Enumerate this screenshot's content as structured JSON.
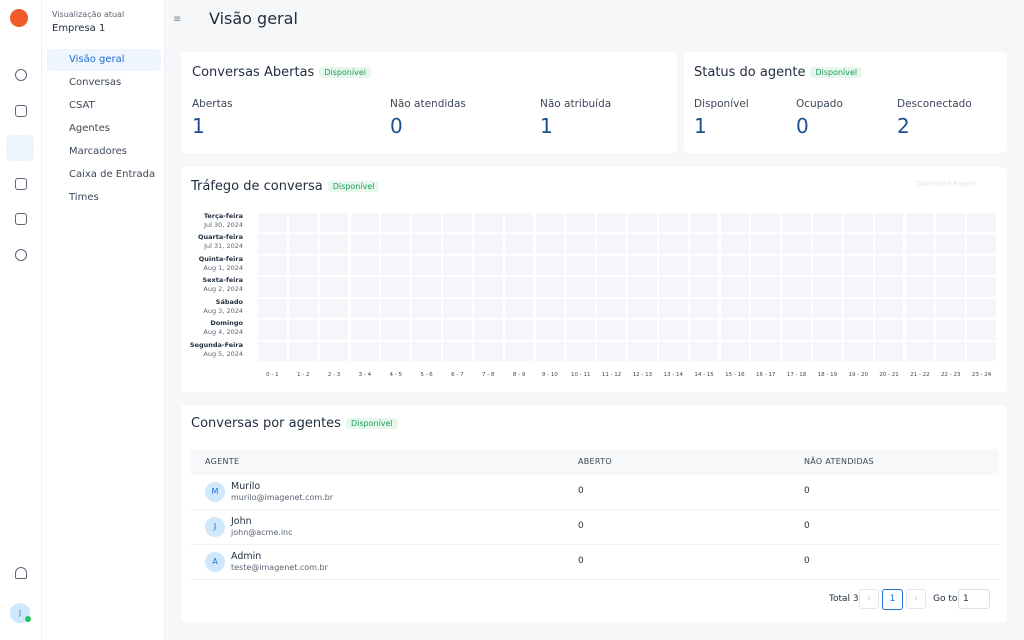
{
  "sidebar": {
    "account_label": "Visualização atual",
    "account_name": "Empresa 1",
    "menu": [
      "Visão geral",
      "Conversas",
      "CSAT",
      "Agentes",
      "Marcadores",
      "Caixa de Entrada",
      "Times"
    ],
    "user_initial": "J"
  },
  "header": {
    "title": "Visão geral"
  },
  "open_conversations": {
    "title": "Conversas Abertas",
    "badge": "Disponível",
    "metrics": [
      {
        "label": "Abertas",
        "value": 1
      },
      {
        "label": "Não atendidas",
        "value": 0
      },
      {
        "label": "Não atribuída",
        "value": 1
      }
    ]
  },
  "agent_status": {
    "title": "Status do agente",
    "badge": "Disponível",
    "metrics": [
      {
        "label": "Disponível",
        "value": 1
      },
      {
        "label": "Ocupado",
        "value": 0
      },
      {
        "label": "Desconectado",
        "value": 2
      }
    ]
  },
  "traffic": {
    "title": "Tráfego de conversa",
    "badge": "Disponível",
    "download": "Download Report",
    "days": [
      {
        "day": "Terça-feira",
        "date": "Jul 30, 2024"
      },
      {
        "day": "Quarta-feira",
        "date": "Jul 31, 2024"
      },
      {
        "day": "Quinta-feira",
        "date": "Aug 1, 2024"
      },
      {
        "day": "Sexta-feira",
        "date": "Aug 2, 2024"
      },
      {
        "day": "Sábado",
        "date": "Aug 3, 2024"
      },
      {
        "day": "Domingo",
        "date": "Aug 4, 2024"
      },
      {
        "day": "Segunda-Feira",
        "date": "Aug 5, 2024"
      }
    ],
    "hours": [
      "0 - 1",
      "1 - 2",
      "2 - 3",
      "3 - 4",
      "4 - 5",
      "5 - 6",
      "6 - 7",
      "7 - 8",
      "8 - 9",
      "9 - 10",
      "10 - 11",
      "11 - 12",
      "12 - 13",
      "13 - 14",
      "14 - 15",
      "15 - 16",
      "16 - 17",
      "17 - 18",
      "18 - 19",
      "19 - 20",
      "20 - 21",
      "21 - 22",
      "22 - 23",
      "23 - 24"
    ]
  },
  "agents_table": {
    "title": "Conversas por agentes",
    "badge": "Disponível",
    "columns": [
      "AGENTE",
      "ABERTO",
      "NÃO ATENDIDAS"
    ],
    "rows": [
      {
        "initial": "M",
        "name": "Murilo",
        "email": "murilo@imagenet.com.br",
        "open": 0,
        "unattended": 0
      },
      {
        "initial": "J",
        "name": "John",
        "email": "john@acme.inc",
        "open": 0,
        "unattended": 0
      },
      {
        "initial": "A",
        "name": "Admin",
        "email": "teste@imagenet.com.br",
        "open": 0,
        "unattended": 0
      }
    ]
  },
  "pagination": {
    "total_label": "Total 3",
    "page": 1,
    "goto_label": "Go to",
    "goto_value": 1
  }
}
